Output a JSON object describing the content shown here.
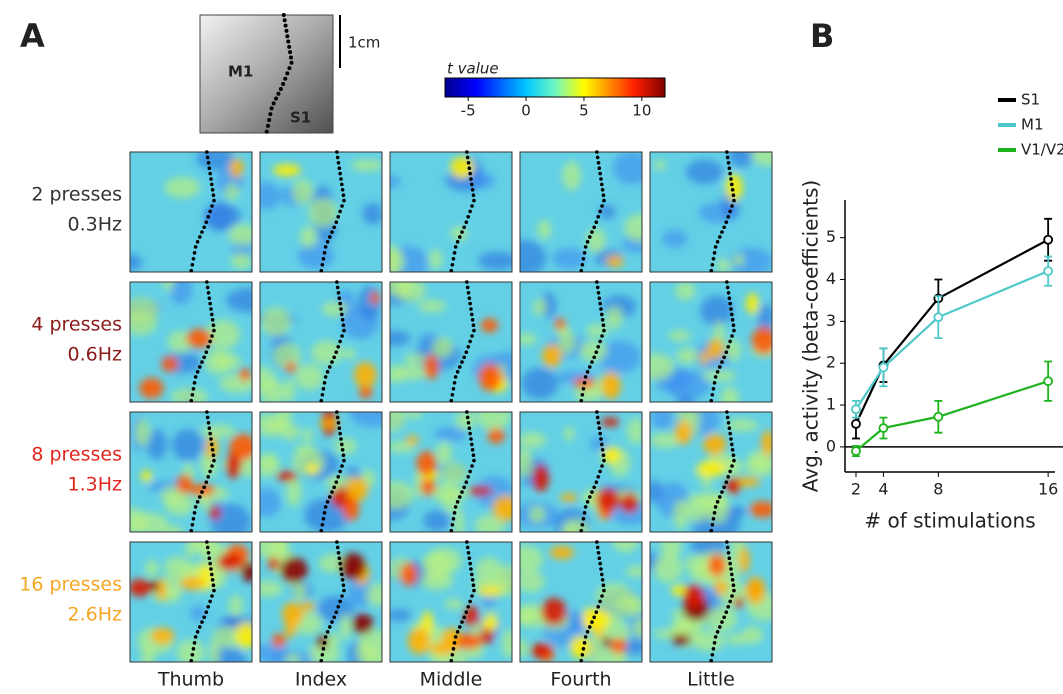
{
  "panel_a": {
    "panel_label": "A",
    "brain": {
      "region_left": "M1",
      "region_right": "S1",
      "scale_bar": "1cm"
    },
    "colorbar": {
      "label": "t value",
      "clim": [
        -7,
        12
      ],
      "ticks": [
        -5,
        0,
        5,
        10
      ]
    },
    "rows": [
      {
        "label": "2 presses",
        "rate": "0.3Hz",
        "color": "#333333"
      },
      {
        "label": "4 presses",
        "rate": "0.6Hz",
        "color": "#8b1a1a"
      },
      {
        "label": "8 presses",
        "rate": "1.3Hz",
        "color": "#e3261f"
      },
      {
        "label": "16 presses",
        "rate": "2.6Hz",
        "color": "#f5a623"
      }
    ],
    "columns": [
      "Thumb",
      "Index",
      "Middle",
      "Fourth",
      "Little"
    ]
  },
  "chart_data": {
    "type": "line",
    "panel_label": "B",
    "x_label": "# of stimulations",
    "y_label": "Avg. activity (beta-coefficients)",
    "x": [
      2,
      4,
      8,
      16
    ],
    "series": [
      {
        "name": "S1",
        "color": "#000000",
        "values": [
          0.55,
          1.95,
          3.55,
          4.95
        ],
        "errors": [
          0.35,
          0.4,
          0.45,
          0.5
        ]
      },
      {
        "name": "M1",
        "color": "#4ec8c8",
        "values": [
          0.9,
          1.9,
          3.1,
          4.2
        ],
        "errors": [
          0.2,
          0.45,
          0.5,
          0.35
        ]
      },
      {
        "name": "V1/V2",
        "color": "#1db31d",
        "values": [
          -0.1,
          0.45,
          0.72,
          1.57
        ],
        "errors": [
          0.12,
          0.25,
          0.38,
          0.47
        ]
      }
    ],
    "xlim": [
      1.2,
      16.5
    ],
    "ylim": [
      -0.6,
      5.9
    ],
    "xticks": [
      2,
      4,
      8,
      16
    ],
    "yticks": [
      0,
      1,
      2,
      3,
      4,
      5
    ],
    "legend": "top-right"
  }
}
